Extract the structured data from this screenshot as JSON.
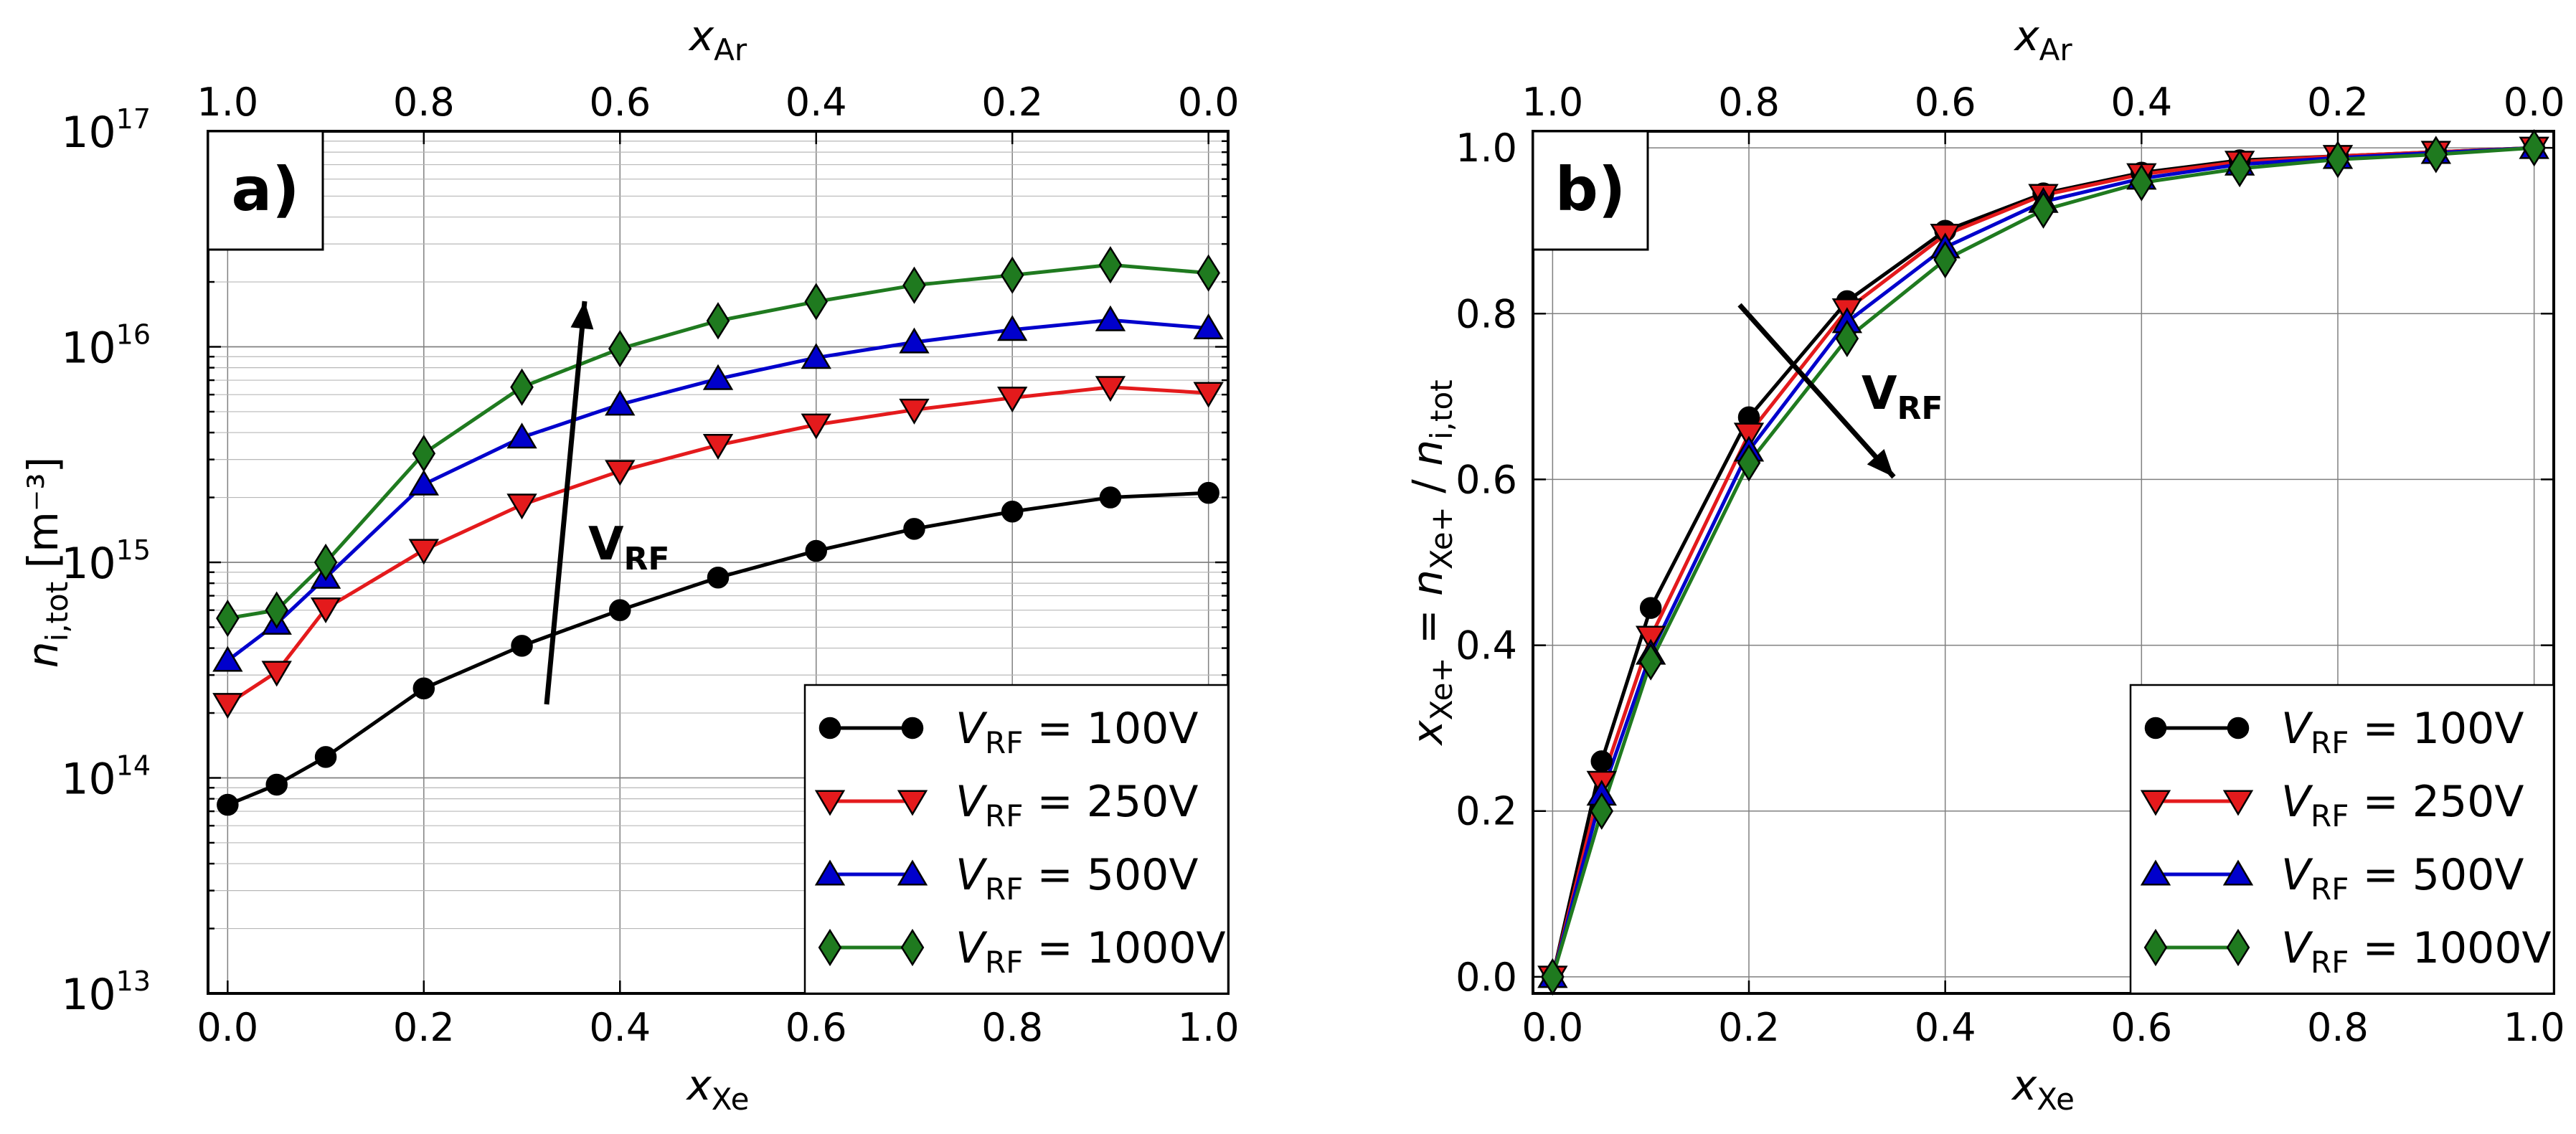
{
  "figure": {
    "panel_a_label": "a)",
    "panel_b_label": "b)",
    "arrow_label_main": "V",
    "arrow_label_sub": "RF"
  },
  "chart_data": [
    {
      "type": "line",
      "panel": "a",
      "yscale": "log",
      "xlabel": "x",
      "xlabel_sub": "Xe",
      "top_xlabel": "x",
      "top_xlabel_sub": "Ar",
      "ylabel": "n",
      "ylabel_sub": "i,tot",
      "ylabel_unit": "[m⁻³]",
      "xlim": [
        -0.02,
        1.02
      ],
      "ylim": [
        10000000000000.0,
        1e+17
      ],
      "xticks": [
        0.0,
        0.2,
        0.4,
        0.6,
        0.8,
        1.0
      ],
      "xtick_labels": [
        "0.0",
        "0.2",
        "0.4",
        "0.6",
        "0.8",
        "1.0"
      ],
      "top_xtick_labels": [
        "1.0",
        "0.8",
        "0.6",
        "0.4",
        "0.2",
        "0.0"
      ],
      "yticks": [
        10000000000000.0,
        100000000000000.0,
        1000000000000000.0,
        1e+16,
        1e+17
      ],
      "ytick_labels": [
        {
          "base": "10",
          "exp": "13"
        },
        {
          "base": "10",
          "exp": "14"
        },
        {
          "base": "10",
          "exp": "15"
        },
        {
          "base": "10",
          "exp": "16"
        },
        {
          "base": "10",
          "exp": "17"
        }
      ],
      "grid": true,
      "legend": "lower-right",
      "x": [
        0.0,
        0.05,
        0.1,
        0.2,
        0.3,
        0.4,
        0.5,
        0.6,
        0.7,
        0.8,
        0.9,
        1.0
      ],
      "series": [
        {
          "name": "V_RF = 100V",
          "label_main": "V",
          "label_sub": "RF",
          "label_value": " = 100V",
          "color": "#000000",
          "marker": "circle",
          "values": [
            75000000000000.0,
            93000000000000.0,
            125000000000000.0,
            260000000000000.0,
            410000000000000.0,
            600000000000000.0,
            850000000000000.0,
            1130000000000000.0,
            1430000000000000.0,
            1720000000000000.0,
            2000000000000000.0,
            2100000000000000.0
          ]
        },
        {
          "name": "V_RF = 250V",
          "label_main": "V",
          "label_sub": "RF",
          "label_value": " = 250V",
          "color": "#e41a1c",
          "marker": "triangle-down",
          "values": [
            220000000000000.0,
            310000000000000.0,
            610000000000000.0,
            1140000000000000.0,
            1850000000000000.0,
            2650000000000000.0,
            3500000000000000.0,
            4350000000000000.0,
            5100000000000000.0,
            5800000000000000.0,
            6500000000000000.0,
            6100000000000000.0
          ]
        },
        {
          "name": "V_RF = 500V",
          "label_main": "V",
          "label_sub": "RF",
          "label_value": " = 500V",
          "color": "#0000cc",
          "marker": "triangle-up",
          "values": [
            350000000000000.0,
            520000000000000.0,
            850000000000000.0,
            2300000000000000.0,
            3800000000000000.0,
            5400000000000000.0,
            7100000000000000.0,
            8900000000000000.0,
            1.05e+16,
            1.2e+16,
            1.33e+16,
            1.22e+16
          ]
        },
        {
          "name": "V_RF = 1000V",
          "label_main": "V",
          "label_sub": "RF",
          "label_value": " = 1000V",
          "color": "#1f7a1f",
          "marker": "diamond",
          "values": [
            550000000000000.0,
            600000000000000.0,
            1000000000000000.0,
            3200000000000000.0,
            6500000000000000.0,
            9800000000000000.0,
            1.32e+16,
            1.62e+16,
            1.93e+16,
            2.15e+16,
            2.4e+16,
            2.2e+16
          ]
        }
      ]
    },
    {
      "type": "line",
      "panel": "b",
      "yscale": "linear",
      "xlabel": "x",
      "xlabel_sub": "Xe",
      "top_xlabel": "x",
      "top_xlabel_sub": "Ar",
      "ylabel_parts": [
        {
          "t": "x",
          "italic": true,
          "sub": false
        },
        {
          "t": "Xe+",
          "italic": false,
          "sub": true
        },
        {
          "t": " = ",
          "italic": false,
          "sub": false
        },
        {
          "t": "n",
          "italic": true,
          "sub": false
        },
        {
          "t": "Xe+",
          "italic": false,
          "sub": true
        },
        {
          "t": " / ",
          "italic": false,
          "sub": false
        },
        {
          "t": "n",
          "italic": true,
          "sub": false
        },
        {
          "t": "i,tot",
          "italic": false,
          "sub": true
        }
      ],
      "xlim": [
        -0.02,
        1.02
      ],
      "ylim": [
        -0.02,
        1.02
      ],
      "xticks": [
        0.0,
        0.2,
        0.4,
        0.6,
        0.8,
        1.0
      ],
      "xtick_labels": [
        "0.0",
        "0.2",
        "0.4",
        "0.6",
        "0.8",
        "1.0"
      ],
      "top_xtick_labels": [
        "1.0",
        "0.8",
        "0.6",
        "0.4",
        "0.2",
        "0.0"
      ],
      "yticks": [
        0.0,
        0.2,
        0.4,
        0.6,
        0.8,
        1.0
      ],
      "ytick_labels": [
        "0.0",
        "0.2",
        "0.4",
        "0.6",
        "0.8",
        "1.0"
      ],
      "grid": true,
      "legend": "lower-right",
      "x": [
        0.0,
        0.05,
        0.1,
        0.2,
        0.3,
        0.4,
        0.5,
        0.6,
        0.7,
        0.8,
        0.9,
        1.0
      ],
      "series": [
        {
          "name": "V_RF = 100V",
          "label_main": "V",
          "label_sub": "RF",
          "label_value": " = 100V",
          "color": "#000000",
          "marker": "circle",
          "values": [
            0.0,
            0.26,
            0.445,
            0.675,
            0.815,
            0.9,
            0.945,
            0.97,
            0.985,
            0.99,
            0.995,
            1.0
          ]
        },
        {
          "name": "V_RF = 250V",
          "label_main": "V",
          "label_sub": "RF",
          "label_value": " = 250V",
          "color": "#e41a1c",
          "marker": "triangle-down",
          "values": [
            0.0,
            0.235,
            0.41,
            0.655,
            0.805,
            0.895,
            0.943,
            0.968,
            0.983,
            0.99,
            0.995,
            1.0
          ]
        },
        {
          "name": "V_RF = 500V",
          "label_main": "V",
          "label_sub": "RF",
          "label_value": " = 500V",
          "color": "#0000cc",
          "marker": "triangle-up",
          "values": [
            0.0,
            0.22,
            0.39,
            0.635,
            0.79,
            0.88,
            0.935,
            0.963,
            0.98,
            0.988,
            0.994,
            1.0
          ]
        },
        {
          "name": "V_RF = 1000V",
          "label_main": "V",
          "label_sub": "RF",
          "label_value": " = 1000V",
          "color": "#1f7a1f",
          "marker": "diamond",
          "values": [
            0.0,
            0.2,
            0.38,
            0.62,
            0.77,
            0.865,
            0.925,
            0.958,
            0.975,
            0.986,
            0.992,
            1.0
          ]
        }
      ]
    }
  ]
}
